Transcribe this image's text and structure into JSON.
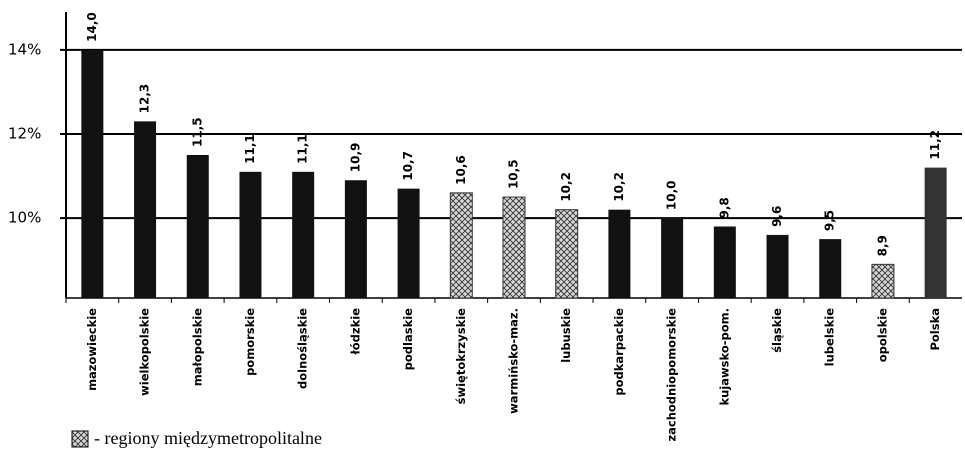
{
  "chart_data": {
    "type": "bar",
    "categories": [
      "mazowieckie",
      "wielkopolskie",
      "małopolskie",
      "pomorskie",
      "dolnośląskie",
      "łódzkie",
      "podlaskie",
      "świętokrzyskie",
      "warmińsko-maz.",
      "lubuskie",
      "podkarpackie",
      "zachodniopomorskie",
      "kujawsko-pom.",
      "śląskie",
      "lubelskie",
      "opolskie",
      "Polska"
    ],
    "values": [
      14.0,
      12.3,
      11.5,
      11.1,
      11.1,
      10.9,
      10.7,
      10.6,
      10.5,
      10.2,
      10.2,
      10.0,
      9.8,
      9.6,
      9.5,
      8.9,
      11.2
    ],
    "value_labels": [
      "14,0",
      "12,3",
      "11,5",
      "11,1",
      "11,1",
      "10,9",
      "10,7",
      "10,6",
      "10,5",
      "10,2",
      "10,2",
      "10,0",
      "9,8",
      "9,6",
      "9,5",
      "8,9",
      "11,2"
    ],
    "colors": [
      "#111111",
      "#111111",
      "#111111",
      "#111111",
      "#111111",
      "#111111",
      "#111111",
      "#cccccc",
      "#cccccc",
      "#cccccc",
      "#111111",
      "#111111",
      "#111111",
      "#111111",
      "#111111",
      "#cccccc",
      "#333333"
    ],
    "hatched": [
      false,
      false,
      false,
      false,
      false,
      false,
      false,
      true,
      true,
      true,
      false,
      false,
      false,
      false,
      false,
      true,
      false
    ],
    "ylim": [
      8.1,
      14.9
    ],
    "yticks": [
      {
        "value": 10,
        "label": "10%"
      },
      {
        "value": 12,
        "label": "12%"
      },
      {
        "value": 14,
        "label": "14%"
      }
    ],
    "grid": true,
    "legend": {
      "label": "- regiony międzymetropolitalne"
    }
  }
}
